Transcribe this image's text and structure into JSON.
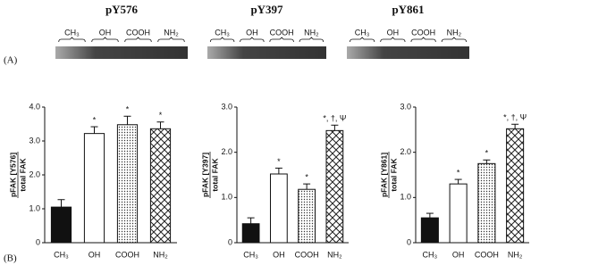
{
  "panel_a": {
    "label": "(A)",
    "blots": [
      {
        "title": "pY576",
        "lanes": [
          "CH₃",
          "OH",
          "COOH",
          "NH₂"
        ]
      },
      {
        "title": "pY397",
        "lanes": [
          "CH₃",
          "OH",
          "COOH",
          "NH₂"
        ]
      },
      {
        "title": "pY861",
        "lanes": [
          "CH₃",
          "OH",
          "COOH",
          "NH₂"
        ]
      }
    ]
  },
  "panel_b": {
    "label": "(B)"
  },
  "chart_data": [
    {
      "type": "bar",
      "ylabel": [
        "pFAK [Y576]",
        "total FAK"
      ],
      "categories": [
        "CH₃",
        "OH",
        "COOH",
        "NH₂"
      ],
      "values": [
        1.05,
        3.22,
        3.48,
        3.36
      ],
      "errors": [
        0.22,
        0.2,
        0.25,
        0.2
      ],
      "annotations": [
        null,
        "*",
        "*",
        "*"
      ],
      "patterns": [
        "solid",
        "none",
        "dots",
        "crosshatch"
      ],
      "ylim": [
        0,
        4
      ],
      "yticks": [
        0,
        {
          "value": 1,
          "label": "1.0"
        },
        {
          "value": 2,
          "label": "2.0"
        },
        {
          "value": 3,
          "label": "3.0"
        },
        {
          "value": 4,
          "label": "4.0"
        }
      ]
    },
    {
      "type": "bar",
      "ylabel": [
        "pFAK [Y397]",
        "total FAK"
      ],
      "categories": [
        "CH₃",
        "OH",
        "COOH",
        "NH₂"
      ],
      "values": [
        0.42,
        1.52,
        1.18,
        2.48
      ],
      "errors": [
        0.13,
        0.13,
        0.12,
        0.12
      ],
      "annotations": [
        null,
        "*",
        "*",
        "*, †, Ψ"
      ],
      "patterns": [
        "solid",
        "none",
        "dots",
        "crosshatch"
      ],
      "ylim": [
        0,
        3
      ],
      "yticks": [
        0,
        {
          "value": 1,
          "label": "1.0"
        },
        {
          "value": 2,
          "label": "2.0"
        },
        {
          "value": 3,
          "label": "3.0"
        }
      ]
    },
    {
      "type": "bar",
      "ylabel": [
        "pFAK [Y861]",
        "total FAK"
      ],
      "categories": [
        "CH₃",
        "OH",
        "COOH",
        "NH₂"
      ],
      "values": [
        0.55,
        1.3,
        1.75,
        2.52
      ],
      "errors": [
        0.1,
        0.1,
        0.08,
        0.1
      ],
      "annotations": [
        null,
        "*",
        "*",
        "*, †, Ψ"
      ],
      "patterns": [
        "solid",
        "none",
        "dots",
        "crosshatch"
      ],
      "ylim": [
        0,
        3
      ],
      "yticks": [
        0,
        {
          "value": 1,
          "label": "1.0"
        },
        {
          "value": 2,
          "label": "2.0"
        },
        {
          "value": 3,
          "label": "3.0"
        }
      ]
    }
  ]
}
